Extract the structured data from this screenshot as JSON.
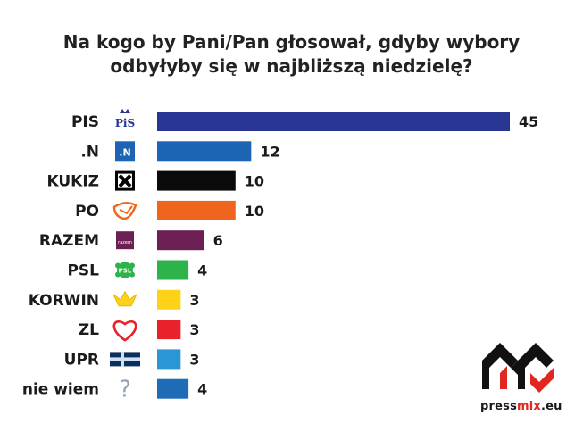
{
  "title_line1": "Na kogo by Pani/Pan głosował, gdyby wybory",
  "title_line2": "odbyłyby się w najbliższą niedzielę?",
  "brand": {
    "part1": "press",
    "part2": "mix",
    "part3": ".eu"
  },
  "chart_data": {
    "type": "bar",
    "orientation": "horizontal",
    "title": "Na kogo by Pani/Pan głosował, gdyby wybory odbyłyby się w najbliższą niedzielę?",
    "categories": [
      "PIS",
      ".N",
      "KUKIZ",
      "PO",
      "RAZEM",
      "PSL",
      "KORWIN",
      "ZL",
      "UPR",
      "nie wiem"
    ],
    "values": [
      45,
      12,
      10,
      10,
      6,
      4,
      3,
      3,
      3,
      4
    ],
    "colors": [
      "#283593",
      "#1e64b4",
      "#0a0a0a",
      "#f0651e",
      "#6b1f52",
      "#2eb24a",
      "#ffd21a",
      "#e8212b",
      "#2b96d4",
      "#1e6cb5"
    ],
    "icons": [
      "pis-logo-icon",
      "nowoczesna-logo-icon",
      "kukiz-logo-icon",
      "po-logo-icon",
      "razem-logo-icon",
      "psl-logo-icon",
      "korwin-crown-icon",
      "zl-heart-icon",
      "upr-cross-icon",
      "question-mark-icon"
    ],
    "icon_texts": {
      "pis": "PiS",
      "nowoczesna": ".N",
      "razem": "razem",
      "psl": "PSL"
    },
    "grid": false,
    "legend": "none"
  }
}
